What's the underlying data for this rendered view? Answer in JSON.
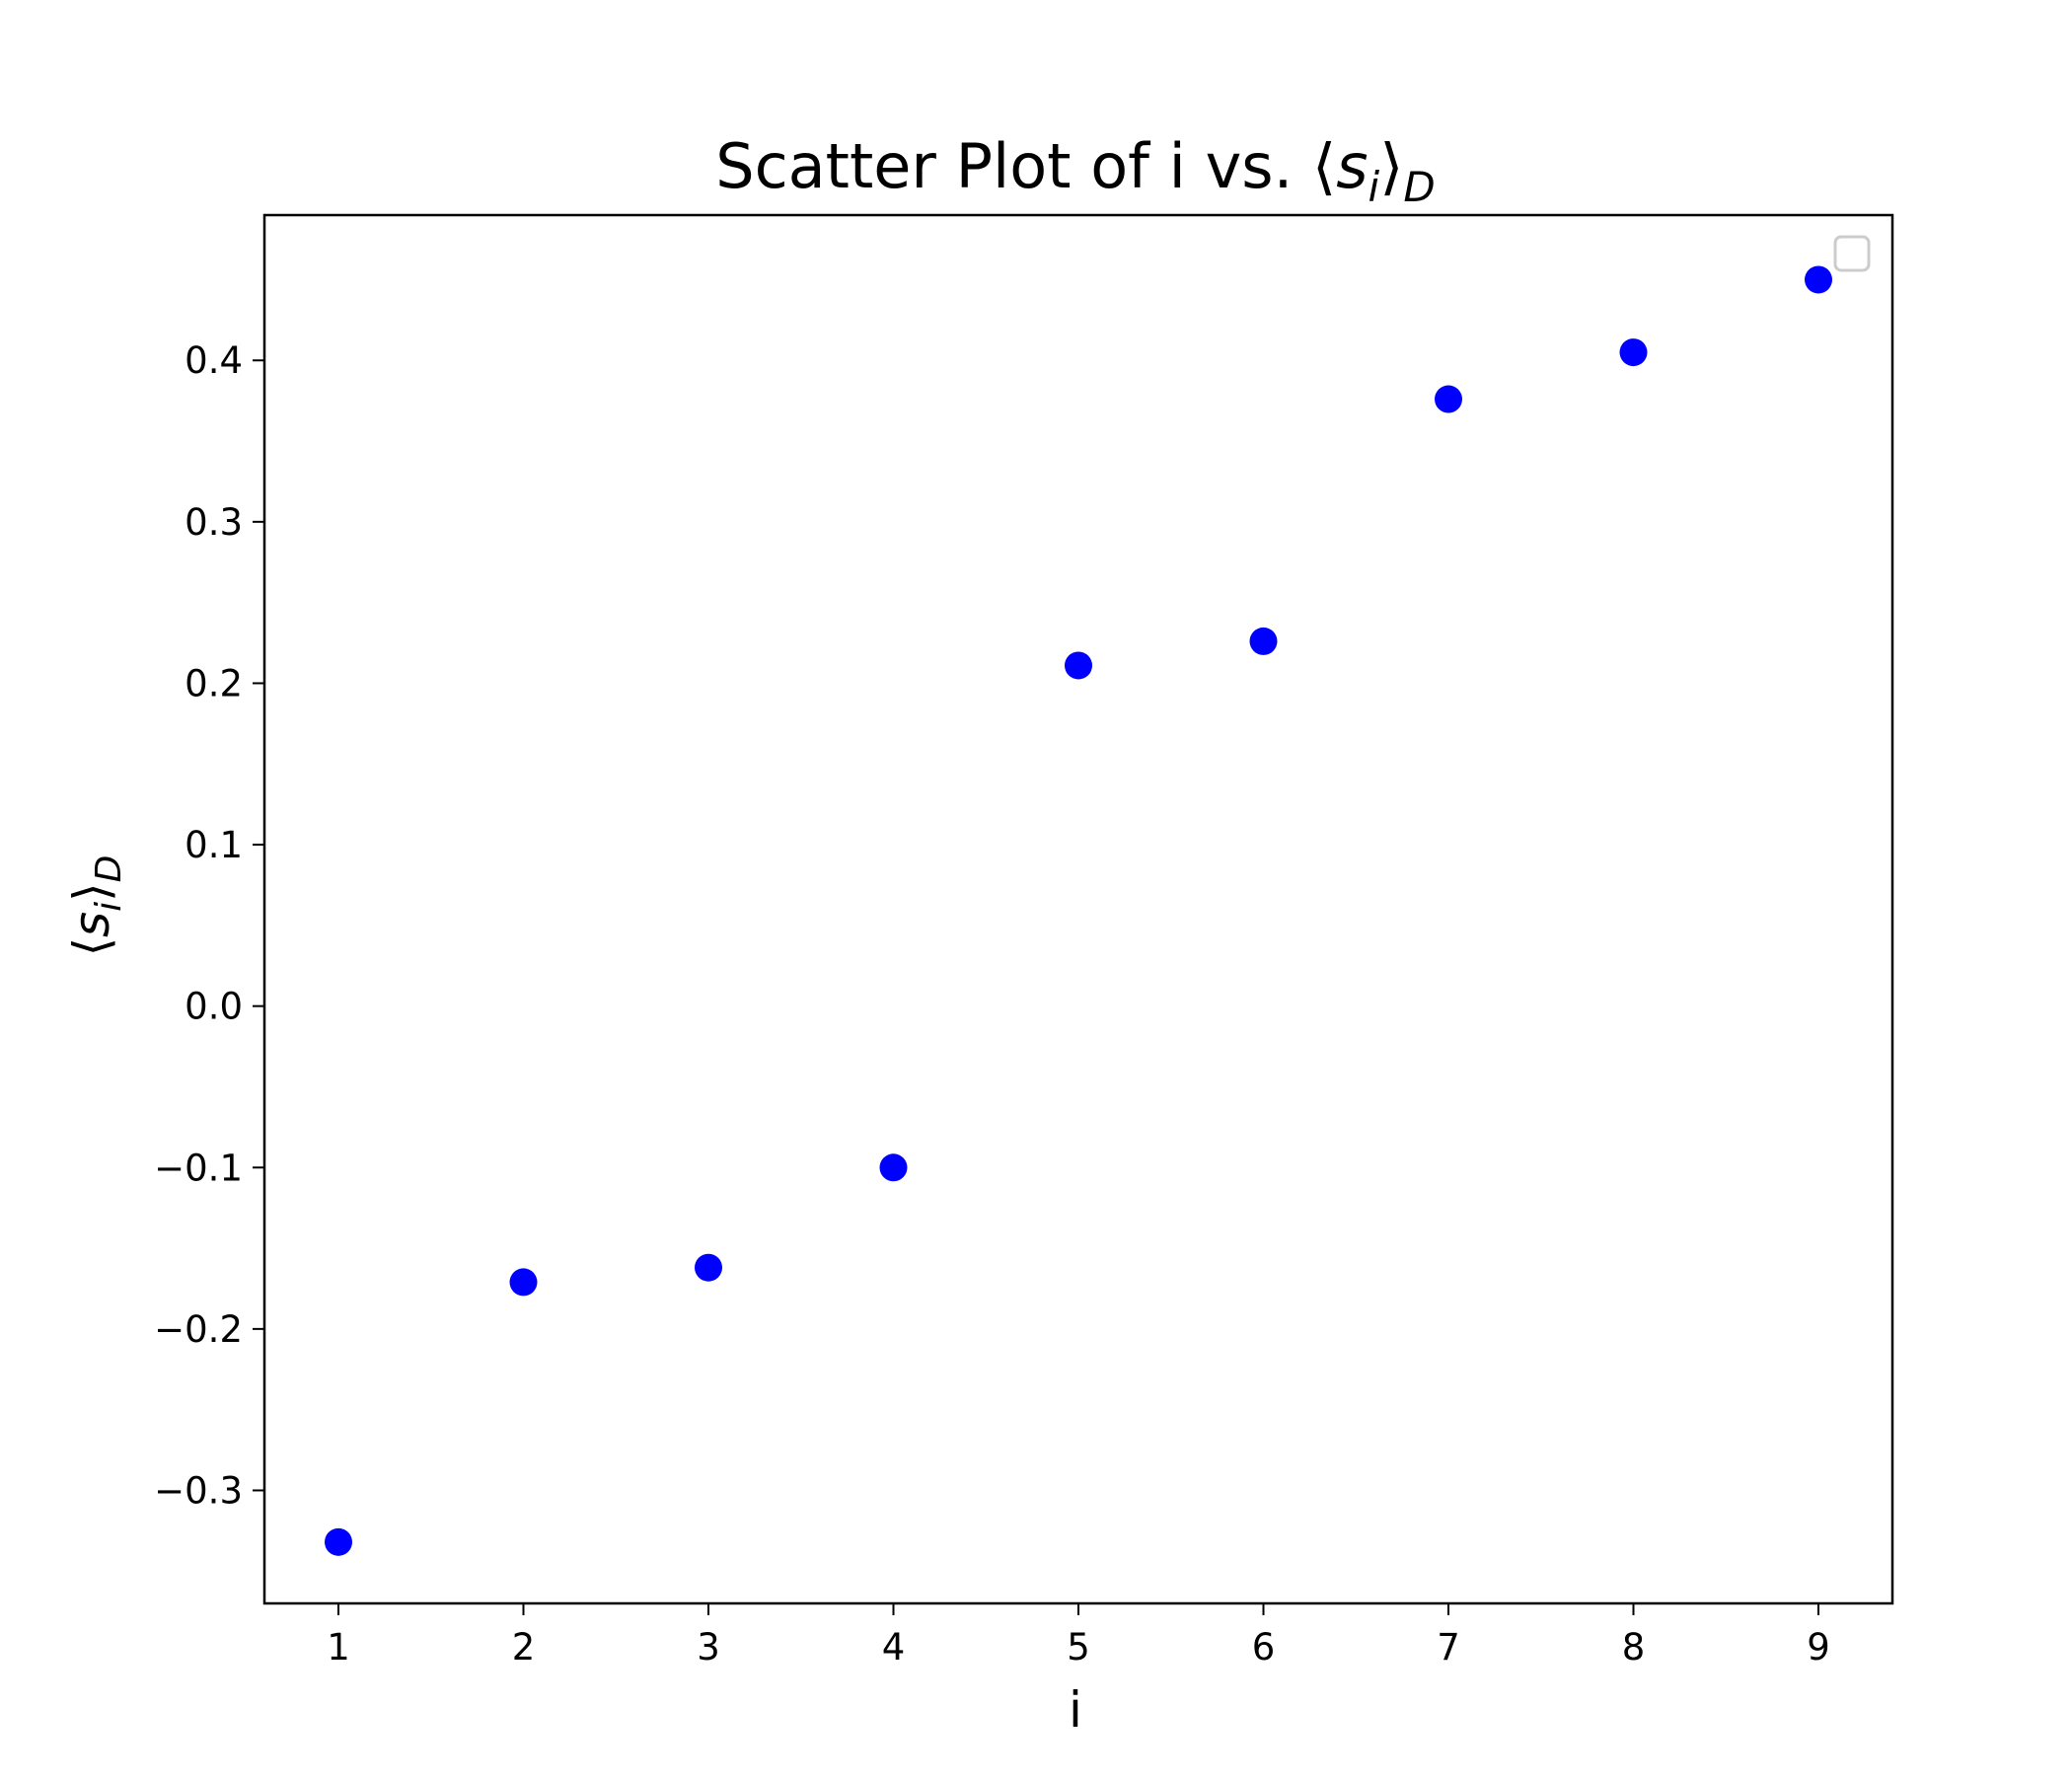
{
  "chart_data": {
    "type": "scatter",
    "title": "Scatter Plot of i vs. ⟨s_i⟩_D",
    "title_parts": {
      "main": "Scatter Plot of i vs. ",
      "symbol": "s",
      "symbol_sub": "i",
      "outer_sub": "D"
    },
    "xlabel": "i",
    "ylabel": "⟨s_i⟩_D",
    "ylabel_parts": {
      "symbol": "s",
      "symbol_sub": "i",
      "outer_sub": "D"
    },
    "xlim": [
      0.6,
      9.4
    ],
    "ylim": [
      -0.37,
      0.49
    ],
    "x_ticks": [
      1,
      2,
      3,
      4,
      5,
      6,
      7,
      8,
      9
    ],
    "y_ticks": [
      -0.3,
      -0.2,
      -0.1,
      0.0,
      0.1,
      0.2,
      0.3,
      0.4
    ],
    "y_tick_labels": [
      "−0.3",
      "−0.2",
      "−0.1",
      "0.0",
      "0.1",
      "0.2",
      "0.3",
      "0.4"
    ],
    "series": [
      {
        "x": [
          1,
          2,
          3,
          4,
          5,
          6,
          7,
          8,
          9
        ],
        "y": [
          -0.332,
          -0.171,
          -0.162,
          -0.1,
          0.211,
          0.226,
          0.376,
          0.405,
          0.45
        ],
        "color": "#0000ff"
      }
    ],
    "legend": {
      "placement": "top-right",
      "entries": []
    },
    "grid": false
  }
}
